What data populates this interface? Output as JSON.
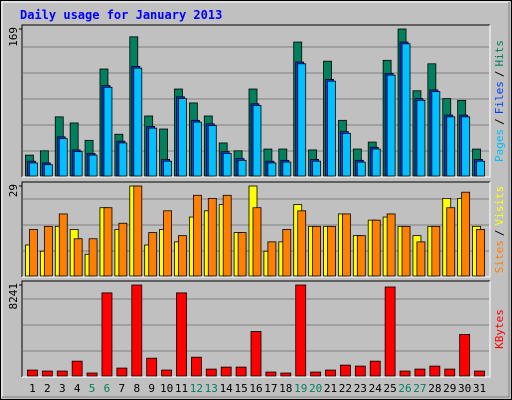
{
  "chart_data": [
    {
      "type": "bar",
      "title": "Daily usage for January 2013",
      "ylim": [
        0,
        169
      ],
      "yticks": [
        169
      ],
      "legend_separator": "/",
      "series": [
        {
          "name": "Pages",
          "color": "#00c0ff",
          "values": [
            15,
            13,
            43,
            28,
            24,
            102,
            38,
            124,
            55,
            17,
            89,
            62,
            58,
            26,
            18,
            81,
            15,
            16,
            129,
            17,
            109,
            49,
            16,
            31,
            116,
            152,
            87,
            97,
            68,
            68,
            17
          ]
        },
        {
          "name": "Files",
          "color": "#0040ff",
          "values": [
            17,
            15,
            45,
            30,
            26,
            104,
            40,
            126,
            57,
            19,
            91,
            64,
            60,
            28,
            20,
            83,
            17,
            18,
            131,
            19,
            111,
            51,
            18,
            33,
            118,
            154,
            89,
            99,
            70,
            70,
            19
          ]
        },
        {
          "name": "Hits",
          "color": "#00805c",
          "values": [
            24,
            29,
            68,
            61,
            41,
            123,
            48,
            160,
            69,
            54,
            100,
            84,
            69,
            38,
            29,
            100,
            31,
            31,
            154,
            30,
            132,
            64,
            31,
            39,
            133,
            169,
            98,
            129,
            89,
            87,
            31
          ]
        }
      ]
    },
    {
      "type": "bar",
      "ylim": [
        0,
        29
      ],
      "yticks": [
        29
      ],
      "legend_separator": "/",
      "series": [
        {
          "name": "Sites",
          "color": "#ff8000",
          "values": [
            15,
            16,
            20,
            12,
            12,
            22,
            17,
            29,
            14,
            21,
            13,
            26,
            25,
            26,
            14,
            22,
            11,
            15,
            21,
            16,
            16,
            20,
            13,
            18,
            20,
            16,
            11,
            16,
            22,
            27,
            15
          ]
        },
        {
          "name": "Visits",
          "color": "#ffff00",
          "values": [
            10,
            8,
            16,
            15,
            7,
            22,
            15,
            29,
            10,
            15,
            11,
            19,
            21,
            23,
            14,
            29,
            8,
            11,
            23,
            16,
            16,
            20,
            13,
            18,
            19,
            16,
            13,
            16,
            25,
            25,
            16
          ]
        }
      ]
    },
    {
      "type": "bar",
      "ylim": [
        0,
        8241
      ],
      "yticks": [
        8241
      ],
      "categories": [
        "1",
        "2",
        "3",
        "4",
        "5",
        "6",
        "7",
        "8",
        "9",
        "10",
        "11",
        "12",
        "13",
        "14",
        "15",
        "16",
        "17",
        "18",
        "19",
        "20",
        "21",
        "22",
        "23",
        "24",
        "25",
        "26",
        "27",
        "28",
        "29",
        "30",
        "31"
      ],
      "category_colors": [
        "#000000",
        "#000000",
        "#000000",
        "#000000",
        "#00805c",
        "#00805c",
        "#000000",
        "#000000",
        "#000000",
        "#000000",
        "#000000",
        "#00805c",
        "#00805c",
        "#000000",
        "#000000",
        "#000000",
        "#000000",
        "#000000",
        "#00805c",
        "#00805c",
        "#000000",
        "#000000",
        "#000000",
        "#000000",
        "#000000",
        "#00805c",
        "#00805c",
        "#000000",
        "#000000",
        "#000000",
        "#000000"
      ],
      "series": [
        {
          "name": "KBytes",
          "color": "#ff0000",
          "values": [
            538,
            448,
            448,
            1344,
            269,
            7527,
            717,
            8241,
            1613,
            538,
            7527,
            1702,
            627,
            806,
            806,
            4032,
            358,
            269,
            8241,
            358,
            538,
            986,
            896,
            1344,
            8062,
            448,
            627,
            896,
            627,
            3763,
            448
          ]
        }
      ]
    }
  ]
}
